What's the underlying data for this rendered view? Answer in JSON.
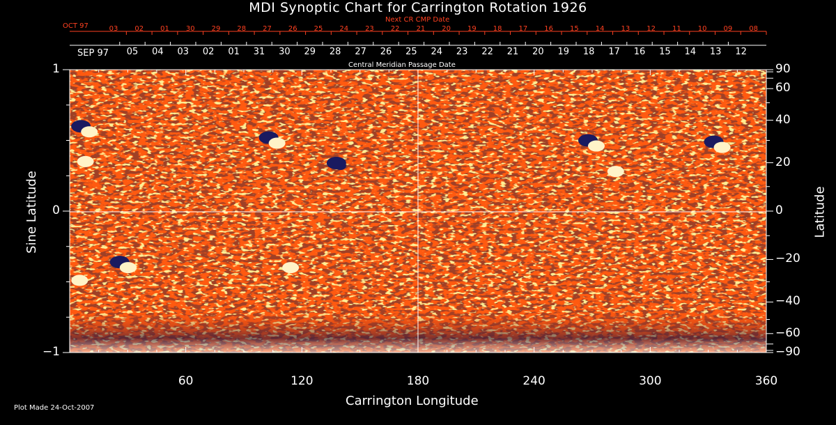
{
  "title": "MDI Synoptic Chart for Carrington Rotation 1926",
  "footer": "Plot Made 24-Oct-2007",
  "colors": {
    "background": "#000000",
    "ink": "#ffffff",
    "accent": "#ff4020",
    "field_base": "#ff5a10",
    "negative": "#1a1a60",
    "positive": "#fff3c8"
  },
  "chart_data": {
    "type": "heatmap",
    "title": "MDI Synoptic Chart for Carrington Rotation 1926",
    "xlabel": "Carrington Longitude",
    "ylabel": "Sine Latitude",
    "ylabel_right": "Latitude",
    "xlim": [
      0,
      360
    ],
    "ylim": [
      -1,
      1
    ],
    "x_ticks": [
      "60",
      "120",
      "180",
      "240",
      "300",
      "360"
    ],
    "y_ticks_left": [
      "1",
      "0",
      "-1"
    ],
    "y_ticks_right": [
      "90",
      "60",
      "40",
      "20",
      "0",
      "-20",
      "-40",
      "-60",
      "-90"
    ],
    "grid": "crosshair at longitude 180 and sine latitude 0",
    "top_axis": {
      "label": "Central Meridian Passage Date",
      "start_label": "SEP 97",
      "dates": [
        "05",
        "04",
        "03",
        "02",
        "01",
        "31",
        "30",
        "29",
        "28",
        "27",
        "26",
        "25",
        "24",
        "23",
        "22",
        "21",
        "20",
        "19",
        "18",
        "17",
        "16",
        "15",
        "14",
        "13",
        "12"
      ]
    },
    "next_cr_axis": {
      "label": "Next CR CMP Date",
      "start_label": "OCT 97",
      "dates": [
        "03",
        "02",
        "01",
        "30",
        "29",
        "28",
        "27",
        "26",
        "25",
        "24",
        "23",
        "22",
        "21",
        "20",
        "19",
        "18",
        "17",
        "16",
        "15",
        "14",
        "13",
        "12",
        "11",
        "10",
        "09",
        "08"
      ]
    },
    "active_regions": [
      {
        "lon": 8,
        "sinlat": 0.58,
        "polarity": "mixed"
      },
      {
        "lon": 6,
        "sinlat": 0.37,
        "polarity": "positive"
      },
      {
        "lon": 105,
        "sinlat": 0.5,
        "polarity": "mixed"
      },
      {
        "lon": 140,
        "sinlat": 0.32,
        "polarity": "negative"
      },
      {
        "lon": 270,
        "sinlat": 0.48,
        "polarity": "mixed"
      },
      {
        "lon": 280,
        "sinlat": 0.3,
        "polarity": "positive"
      },
      {
        "lon": 335,
        "sinlat": 0.47,
        "polarity": "mixed"
      },
      {
        "lon": 28,
        "sinlat": -0.38,
        "polarity": "mixed"
      },
      {
        "lon": 112,
        "sinlat": -0.38,
        "polarity": "positive"
      },
      {
        "lon": 3,
        "sinlat": -0.47,
        "polarity": "positive"
      }
    ]
  }
}
